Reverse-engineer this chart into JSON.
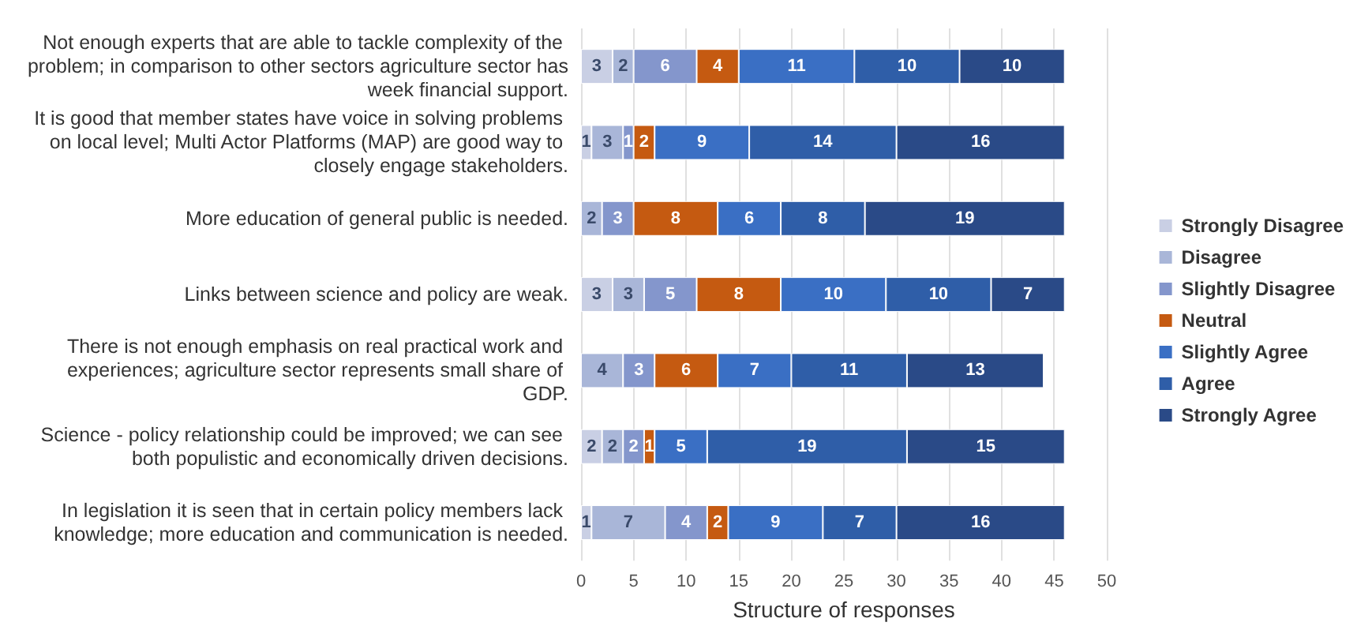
{
  "chart_data": {
    "type": "bar",
    "orientation": "horizontal",
    "stacked": true,
    "xlabel": "Structure of responses",
    "categories": [
      "Not enough experts that are able to tackle complexity of the problem; in comparison to other sectors agriculture sector has week financial support.",
      "It is good that member states have voice in solving problems on local level; Multi Actor Platforms (MAP) are good way to closely engage stakeholders.",
      "More education of general public is needed.",
      "Links between science and policy are weak.",
      "There is not enough emphasis on real practical work and experiences; agriculture sector represents small share of GDP.",
      "Science - policy relationship could be improved; we can see both populistic and economically driven decisions.",
      "In legislation it is seen that in certain policy members lack knowledge; more education and communication is needed."
    ],
    "series": [
      {
        "name": "Strongly Disagree",
        "color": "#c9cfe4",
        "values": [
          3,
          1,
          null,
          3,
          null,
          2,
          1
        ]
      },
      {
        "name": "Disagree",
        "color": "#a9b6d8",
        "values": [
          2,
          3,
          2,
          3,
          4,
          2,
          7
        ]
      },
      {
        "name": "Slightly Disagree",
        "color": "#8496cc",
        "values": [
          6,
          1,
          3,
          5,
          3,
          2,
          4
        ]
      },
      {
        "name": "Neutral",
        "color": "#c55a11",
        "values": [
          4,
          2,
          8,
          8,
          6,
          1,
          2
        ]
      },
      {
        "name": "Slightly Agree",
        "color": "#3a6fc4",
        "values": [
          11,
          9,
          6,
          10,
          7,
          5,
          9
        ]
      },
      {
        "name": "Agree",
        "color": "#2f5ea8",
        "values": [
          10,
          14,
          8,
          10,
          11,
          19,
          7
        ]
      },
      {
        "name": "Strongly Agree",
        "color": "#2a4a87",
        "values": [
          10,
          16,
          19,
          7,
          13,
          15,
          16
        ]
      }
    ],
    "xlim": [
      0,
      50
    ],
    "xticks": [
      0,
      5,
      10,
      15,
      20,
      25,
      30,
      35,
      40,
      45,
      50
    ],
    "grid": "x",
    "legend": "right",
    "data_labels": true
  }
}
